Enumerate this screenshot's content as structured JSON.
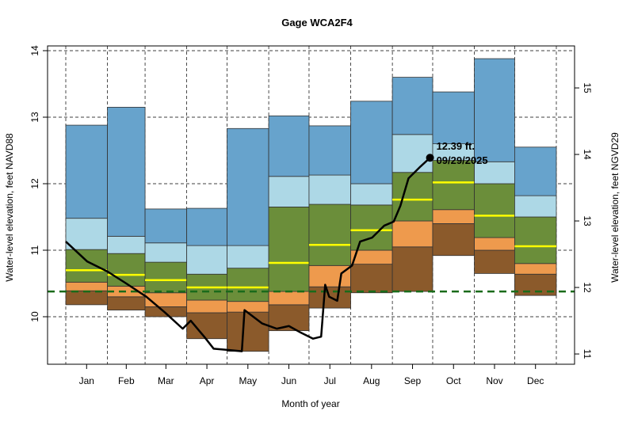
{
  "chart_data": {
    "type": "bar",
    "title": "Gage WCA2F4",
    "xlabel": "Month of year",
    "ylabel": "Water-level elevation, feet NAVD88",
    "ylabel_right": "Water-level elevation, feet NGVD29",
    "ylim": [
      9.3,
      14.05
    ],
    "y_ticks": [
      10,
      11,
      12,
      13,
      14
    ],
    "y_right_ticks": [
      11,
      12,
      13,
      14,
      15
    ],
    "ngvd_offset": 1.56,
    "grid": true,
    "categories": [
      "Jan",
      "Feb",
      "Mar",
      "Apr",
      "May",
      "Jun",
      "Jul",
      "Aug",
      "Sep",
      "Oct",
      "Nov",
      "Dec"
    ],
    "month_days": [
      31,
      28,
      31,
      30,
      31,
      30,
      31,
      31,
      30,
      31,
      30,
      31
    ],
    "band_colors": {
      "brown": "#8b5a2b",
      "orange": "#ee9a4d",
      "green": "#6b8e3a",
      "lightblue": "#add8e6",
      "blue": "#67a3cc",
      "median": "#ffff00"
    },
    "series": [
      {
        "name": "min",
        "values": [
          10.18,
          10.1,
          10.0,
          9.67,
          9.48,
          9.79,
          10.13,
          10.36,
          10.38,
          10.92,
          10.65,
          10.32
        ]
      },
      {
        "name": "p10",
        "values": [
          10.39,
          10.3,
          10.15,
          10.06,
          10.07,
          10.18,
          10.45,
          10.79,
          11.05,
          11.4,
          11.0,
          10.64
        ]
      },
      {
        "name": "p25",
        "values": [
          10.52,
          10.46,
          10.36,
          10.25,
          10.23,
          10.38,
          10.77,
          11.0,
          11.44,
          11.61,
          11.19,
          10.8
        ]
      },
      {
        "name": "median",
        "values": [
          10.7,
          10.63,
          10.55,
          10.44,
          10.44,
          10.81,
          11.08,
          11.3,
          11.76,
          12.02,
          11.52,
          11.06
        ]
      },
      {
        "name": "p75",
        "values": [
          11.01,
          10.95,
          10.82,
          10.64,
          10.73,
          11.65,
          11.69,
          11.68,
          12.17,
          12.35,
          12.0,
          11.5
        ]
      },
      {
        "name": "p90",
        "values": [
          11.48,
          11.21,
          11.11,
          11.07,
          11.07,
          12.11,
          12.13,
          12.0,
          12.74,
          12.6,
          12.33,
          11.82
        ]
      },
      {
        "name": "max",
        "values": [
          12.88,
          13.15,
          11.62,
          11.63,
          12.83,
          13.02,
          12.87,
          13.24,
          13.6,
          13.38,
          13.88,
          12.55
        ]
      }
    ],
    "reference_line": {
      "value": 10.38,
      "color": "#1a6b1a"
    },
    "current_year": {
      "day": [
        0,
        16,
        31,
        45,
        60,
        74,
        87,
        93,
        103,
        110,
        121,
        131,
        133,
        146,
        157,
        166,
        175,
        184,
        190,
        193,
        196,
        202,
        205,
        213,
        219,
        228,
        237,
        244,
        249,
        255,
        264,
        271
      ],
      "value": [
        11.13,
        10.83,
        10.68,
        10.5,
        10.3,
        10.06,
        9.82,
        9.94,
        9.7,
        9.52,
        9.5,
        9.48,
        10.1,
        9.9,
        9.82,
        9.86,
        9.76,
        9.67,
        9.7,
        10.48,
        10.3,
        10.24,
        10.65,
        10.77,
        11.13,
        11.19,
        11.37,
        11.43,
        11.67,
        12.08,
        12.26,
        12.39
      ]
    },
    "annotation": {
      "line1": "12.39 ft.",
      "line2": "09/29/2025"
    }
  }
}
